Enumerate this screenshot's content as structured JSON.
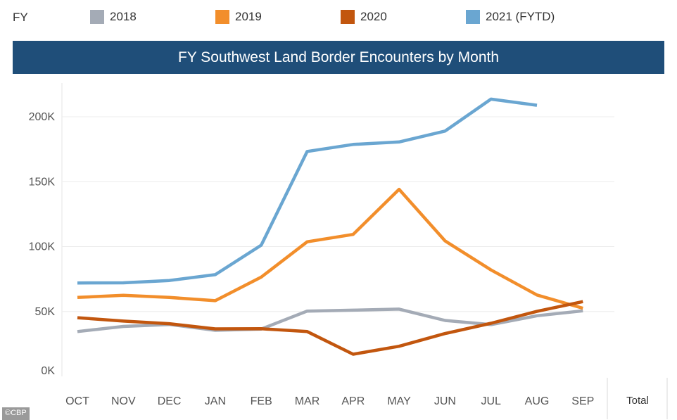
{
  "legend": {
    "title": "FY",
    "items": [
      {
        "label": "2018",
        "color": "#a4abb6"
      },
      {
        "label": "2019",
        "color": "#f28e2b"
      },
      {
        "label": "2020",
        "color": "#c2560e"
      },
      {
        "label": "2021 (FYTD)",
        "color": "#6aa6d1"
      }
    ]
  },
  "total_label": "Total",
  "credit": "©CBP",
  "chart_data": {
    "type": "line",
    "title": "FY Southwest Land Border Encounters by Month",
    "categories": [
      "OCT",
      "NOV",
      "DEC",
      "JAN",
      "FEB",
      "MAR",
      "APR",
      "MAY",
      "JUN",
      "JUL",
      "AUG",
      "SEP"
    ],
    "y_ticks": [
      "0K",
      "50K",
      "100K",
      "150K",
      "200K"
    ],
    "ylim": [
      0,
      225000
    ],
    "grid": true,
    "legend_position": "top",
    "series": [
      {
        "name": "2018",
        "color": "#a4abb6",
        "values": [
          34500,
          38500,
          40000,
          35500,
          36500,
          50300,
          51000,
          51800,
          43100,
          39900,
          46700,
          50500
        ]
      },
      {
        "name": "2019",
        "color": "#f28e2b",
        "values": [
          60800,
          62500,
          60800,
          58300,
          76500,
          103700,
          109400,
          144100,
          104400,
          82000,
          62700,
          52500
        ]
      },
      {
        "name": "2020",
        "color": "#c2560e",
        "values": [
          45200,
          42600,
          40600,
          36600,
          36700,
          34500,
          17100,
          23200,
          33000,
          40900,
          50100,
          57600
        ]
      },
      {
        "name": "2021 (FYTD)",
        "color": "#6aa6d1",
        "values": [
          72000,
          72100,
          73900,
          78400,
          101100,
          173300,
          178700,
          180600,
          189000,
          213600,
          208900,
          null
        ]
      }
    ]
  }
}
